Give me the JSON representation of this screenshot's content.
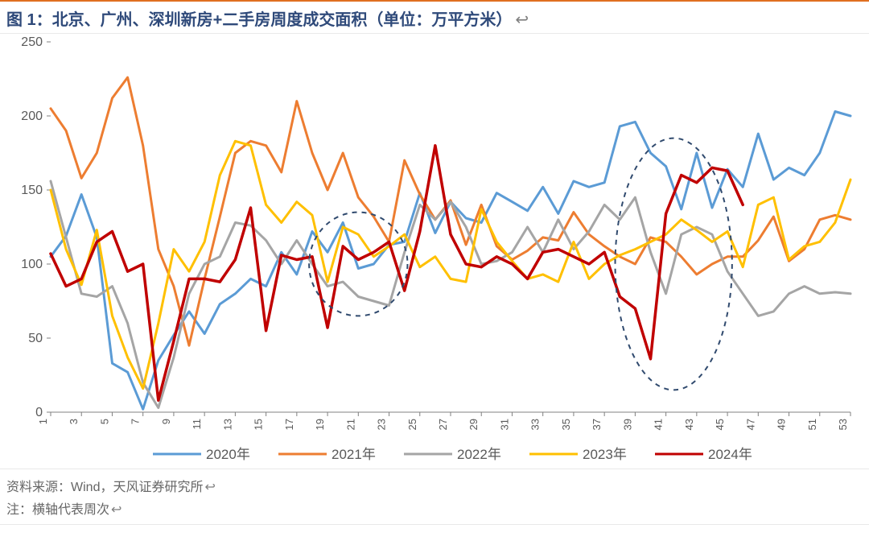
{
  "title_prefix": "图 1：",
  "title_text": "北京、广州、深圳新房+二手房周度成交面积（单位：万平方米）",
  "title_color": "#2f4a7a",
  "title_fontsize": 20,
  "accent_rule_color": "#e06f20",
  "source_label": "资料来源：",
  "source_text": "Wind，天风证券研究所",
  "note_label": "注：",
  "note_text": "横轴代表周次",
  "footer_color": "#666666",
  "chart": {
    "type": "line",
    "background_color": "#ffffff",
    "axis_color": "#808080",
    "tick_label_color": "#595959",
    "xlim": [
      1,
      53
    ],
    "ylim": [
      0,
      250
    ],
    "ytick_step": 50,
    "xtick_step": 2,
    "xtick_start": 1,
    "line_width": 3,
    "series": [
      {
        "name": "2020年",
        "color": "#5b9bd5",
        "values": [
          105,
          119,
          147,
          118,
          33,
          27,
          2,
          35,
          52,
          68,
          53,
          73,
          80,
          90,
          85,
          108,
          93,
          122,
          108,
          128,
          97,
          100,
          113,
          115,
          148,
          121,
          142,
          131,
          128,
          148,
          142,
          136,
          152,
          134,
          156,
          152,
          155,
          193,
          196,
          175,
          166,
          137,
          175,
          138,
          164,
          152,
          188,
          157,
          165,
          160,
          175,
          203,
          200
        ]
      },
      {
        "name": "2021年",
        "color": "#ed7d31",
        "values": [
          205,
          190,
          158,
          175,
          212,
          226,
          180,
          110,
          85,
          45,
          90,
          132,
          175,
          183,
          180,
          162,
          210,
          175,
          150,
          175,
          145,
          132,
          115,
          170,
          147,
          130,
          143,
          113,
          140,
          112,
          103,
          109,
          118,
          116,
          135,
          120,
          112,
          105,
          100,
          118,
          115,
          105,
          93,
          100,
          105,
          105,
          116,
          132,
          102,
          110,
          130,
          133,
          130
        ]
      },
      {
        "name": "2022年",
        "color": "#a5a5a5",
        "values": [
          156,
          118,
          80,
          78,
          85,
          60,
          20,
          3,
          37,
          80,
          100,
          105,
          128,
          126,
          116,
          100,
          116,
          100,
          85,
          88,
          78,
          75,
          72,
          108,
          140,
          130,
          142,
          125,
          100,
          102,
          108,
          125,
          108,
          130,
          110,
          122,
          140,
          130,
          145,
          108,
          80,
          120,
          125,
          120,
          95,
          80,
          65,
          68,
          80,
          85,
          80,
          81,
          80
        ]
      },
      {
        "name": "2023年",
        "color": "#ffc000",
        "values": [
          150,
          110,
          86,
          123,
          65,
          37,
          16,
          60,
          110,
          95,
          115,
          160,
          183,
          180,
          140,
          128,
          142,
          133,
          88,
          125,
          120,
          105,
          112,
          120,
          98,
          105,
          90,
          88,
          137,
          115,
          102,
          90,
          93,
          88,
          115,
          90,
          100,
          106,
          110,
          115,
          120,
          130,
          123,
          115,
          122,
          98,
          140,
          145,
          103,
          112,
          115,
          128,
          157
        ]
      },
      {
        "name": "2024年",
        "color": "#c00000",
        "values": [
          107,
          85,
          90,
          115,
          122,
          95,
          100,
          8,
          48,
          90,
          90,
          88,
          103,
          138,
          55,
          106,
          103,
          105,
          57,
          112,
          103,
          108,
          115,
          82,
          122,
          180,
          120,
          100,
          98,
          105,
          100,
          90,
          108,
          110,
          105,
          100,
          108,
          78,
          70,
          36,
          134,
          160,
          155,
          165,
          163,
          140
        ]
      }
    ],
    "annotations": [
      {
        "type": "ellipse",
        "cx_week": 21,
        "cy_value": 100,
        "rx_weeks": 3.2,
        "ry_value": 35,
        "stroke": "#304a6e",
        "dash": "6,6",
        "stroke_width": 2
      },
      {
        "type": "ellipse",
        "cx_week": 41.5,
        "cy_value": 100,
        "rx_weeks": 3.8,
        "ry_value": 85,
        "stroke": "#304a6e",
        "dash": "6,6",
        "stroke_width": 2
      }
    ],
    "legend": {
      "position": "bottom",
      "line_length": 60,
      "fontsize": 17
    }
  }
}
